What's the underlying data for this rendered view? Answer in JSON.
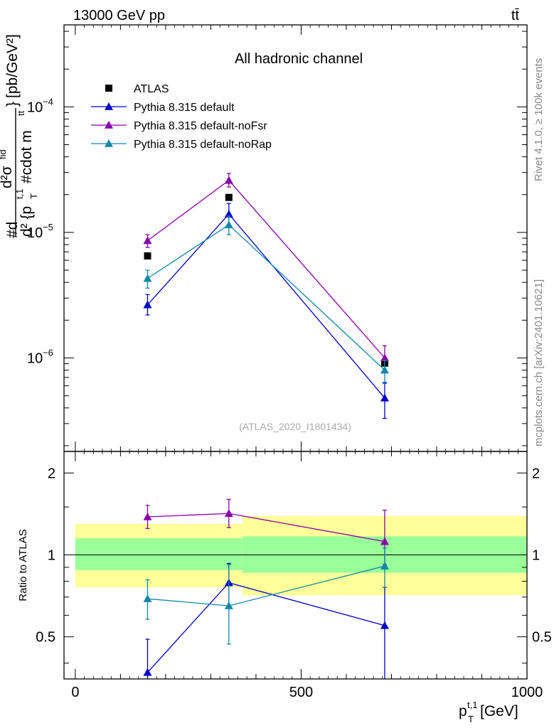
{
  "header": {
    "energy_label": "13000 GeV pp",
    "process_label": "tt̄"
  },
  "side_notes": {
    "rivet": "Rivet 4.1.0, ≥ 100k events",
    "mcplots": "mcplots.cern.ch [arXiv:2401.10621]"
  },
  "chart_data": [
    {
      "type": "line",
      "panel": "main",
      "title": "All hadronic channel",
      "watermark": "(ATLAS_2020_I1801434)",
      "ylabel": "#d d²σ^fid / d² {p_T^{t,1} #cdot m^{tt}} [pb/GeV²]",
      "ylabel_parts": {
        "numerator_prefix": "#d",
        "numerator": "d²σ",
        "numerator_sup": "fid",
        "denominator": "d² {p",
        "denominator_sub": "T",
        "denominator_sup": "t,1",
        "denominator_tail": " #cdot m",
        "denominator_tail_sup": "tt",
        "close_brace": "}",
        "units": "[pb/GeV²]"
      },
      "yscale": "log",
      "ylim": [
        1.8e-07,
        0.00045
      ],
      "xlim": [
        -25,
        1000
      ],
      "y_ticks": [
        {
          "value": 1e-06,
          "base": "10",
          "exp": "−6"
        },
        {
          "value": 1e-05,
          "base": "10",
          "exp": "−5"
        },
        {
          "value": 0.0001,
          "base": "10",
          "exp": "−4"
        }
      ],
      "legend_position": "top-left",
      "series": [
        {
          "name": "ATLAS",
          "marker": "square",
          "color": "#000000",
          "x": [
            160,
            340,
            685
          ],
          "y": [
            6.5e-06,
            1.9e-05,
            9.1e-07
          ],
          "yerr": [
            [
              0,
              0,
              0
            ],
            [
              0,
              0,
              0
            ]
          ]
        },
        {
          "name": "Pythia 8.315 default",
          "marker": "triangle",
          "color": "#0000cc",
          "x": [
            160,
            340,
            685
          ],
          "y": [
            2.65e-06,
            1.4e-05,
            4.8e-07
          ],
          "yerr_low": [
            2.2e-06,
            1.15e-05,
            3.3e-07
          ],
          "yerr_high": [
            3.2e-06,
            1.7e-05,
            6.3e-07
          ]
        },
        {
          "name": "Pythia 8.315 default-noFsr",
          "marker": "triangle",
          "color": "#8800aa",
          "x": [
            160,
            340,
            685
          ],
          "y": [
            8.6e-06,
            2.6e-05,
            1e-06
          ],
          "yerr_low": [
            7.6e-06,
            2.3e-05,
            8e-07
          ],
          "yerr_high": [
            9.6e-06,
            2.95e-05,
            1.25e-06
          ]
        },
        {
          "name": "Pythia 8.315 default-noRap",
          "marker": "triangle",
          "color": "#1188aa",
          "x": [
            160,
            340,
            685
          ],
          "y": [
            4.3e-06,
            1.15e-05,
            8e-07
          ],
          "yerr_low": [
            3.6e-06,
            9.6e-06,
            6.4e-07
          ],
          "yerr_high": [
            5e-06,
            1.35e-05,
            9.6e-07
          ]
        }
      ]
    },
    {
      "type": "line",
      "panel": "ratio",
      "ylabel": "Ratio to ATLAS",
      "xlabel": "p_T^{t,1} [GeV]",
      "xlabel_parts": {
        "base": "p",
        "sub": "T",
        "sup": "t,1",
        "units": " [GeV]"
      },
      "xlim": [
        -25,
        1000
      ],
      "ylim": [
        0.35,
        2.4
      ],
      "yscale": "log",
      "x_ticks": [
        0,
        500,
        1000
      ],
      "y_ticks": [
        0.5,
        1,
        2
      ],
      "reference_line": 1,
      "bands": [
        {
          "x0": 0,
          "x1": 370,
          "yellow": [
            0.76,
            1.3
          ],
          "green": [
            0.88,
            1.15
          ]
        },
        {
          "x0": 370,
          "x1": 1000,
          "yellow": [
            0.71,
            1.39
          ],
          "green": [
            0.86,
            1.17
          ]
        }
      ],
      "series": [
        {
          "name": "Pythia 8.315 default",
          "color": "#0000cc",
          "x": [
            160,
            340,
            685
          ],
          "y": [
            0.37,
            0.79,
            0.55
          ],
          "yerr_low": [
            0.3,
            0.64,
            0.3
          ],
          "yerr_high": [
            0.49,
            0.93,
            0.76
          ]
        },
        {
          "name": "Pythia 8.315 default-noFsr",
          "color": "#8800aa",
          "x": [
            160,
            340,
            685
          ],
          "y": [
            1.38,
            1.42,
            1.12
          ],
          "yerr_low": [
            1.25,
            1.26,
            0.92
          ],
          "yerr_high": [
            1.52,
            1.6,
            1.46
          ]
        },
        {
          "name": "Pythia 8.315 default-noRap",
          "color": "#1188aa",
          "x": [
            160,
            340,
            685
          ],
          "y": [
            0.69,
            0.65,
            0.91
          ],
          "yerr_low": [
            0.58,
            0.47,
            0.76
          ],
          "yerr_high": [
            0.81,
            0.92,
            1.06
          ]
        }
      ]
    }
  ]
}
